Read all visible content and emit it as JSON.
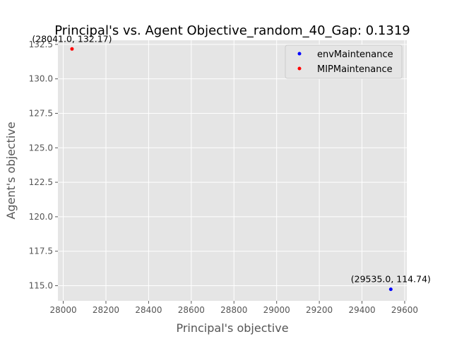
{
  "chart_data": {
    "type": "scatter",
    "title": "Principal's vs. Agent Objective_random_40_Gap: 0.1319",
    "xlabel": "Principal's objective",
    "ylabel": "Agent's objective",
    "xlim": [
      27975,
      29610
    ],
    "ylim": [
      113.9,
      132.8
    ],
    "xticks": [
      28000,
      28200,
      28400,
      28600,
      28800,
      29000,
      29200,
      29400,
      29600
    ],
    "yticks": [
      115.0,
      117.5,
      120.0,
      122.5,
      125.0,
      127.5,
      130.0,
      132.5
    ],
    "xtick_labels": [
      "28000",
      "28200",
      "28400",
      "28600",
      "28800",
      "29000",
      "29200",
      "29400",
      "29600"
    ],
    "ytick_labels": [
      "115.0",
      "117.5",
      "120.0",
      "122.5",
      "125.0",
      "127.5",
      "130.0",
      "132.5"
    ],
    "grid": true,
    "legend_position": "top-right",
    "series": [
      {
        "name": "envMaintenance",
        "color": "#0000ff",
        "points": [
          {
            "x": 29535.0,
            "y": 114.74,
            "label": "(29535.0, 114.74)"
          }
        ]
      },
      {
        "name": "MIPMaintenance",
        "color": "#ff0000",
        "points": [
          {
            "x": 28041.0,
            "y": 132.17,
            "label": "(28041.0, 132.17)"
          }
        ]
      }
    ]
  },
  "colors": {
    "plot_background": "#e5e5e5",
    "grid": "#ffffff",
    "tick_text": "#555555",
    "axis_label": "#555555",
    "title": "#000000"
  }
}
